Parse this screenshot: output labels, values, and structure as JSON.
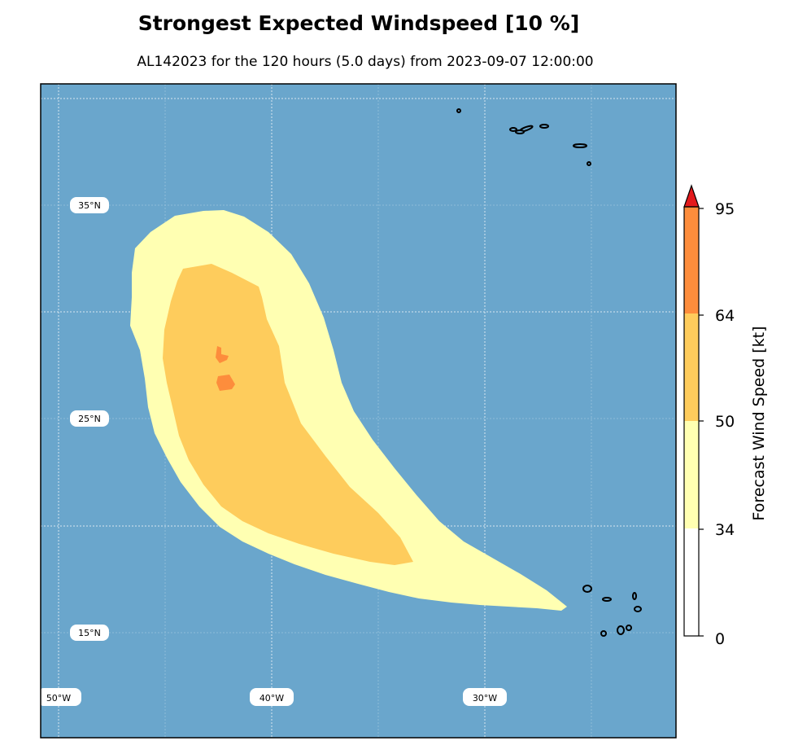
{
  "title": "Strongest Expected Windspeed [10 %]",
  "subtitle": "AL142023 for the 120 hours (5.0 days) from 2023-09-07 12:00:00",
  "map": {
    "lat_labels": [
      "35°N",
      "25°N",
      "15°N"
    ],
    "lon_labels": [
      "50°W",
      "40°W",
      "30°W"
    ],
    "ocean_color": "#6aa6cc",
    "coastline_color": "#000000"
  },
  "colorbar": {
    "label": "Forecast Wind Speed [kt]",
    "ticks": [
      "95",
      "64",
      "50",
      "34",
      "0"
    ],
    "bands": [
      {
        "from": 0,
        "to": 34,
        "color": "#ffffff"
      },
      {
        "from": 34,
        "to": 50,
        "color": "#ffffb2"
      },
      {
        "from": 50,
        "to": 64,
        "color": "#fecc5c"
      },
      {
        "from": 64,
        "to": 95,
        "color": "#fd8d3c"
      },
      {
        "from": 95,
        "to": null,
        "color": "#e31a1c"
      }
    ]
  },
  "wind_zones": [
    {
      "threshold_kt": 34,
      "color": "#ffffb2"
    },
    {
      "threshold_kt": 50,
      "color": "#fecc5c"
    },
    {
      "threshold_kt": 64,
      "color": "#fd8d3c"
    }
  ]
}
